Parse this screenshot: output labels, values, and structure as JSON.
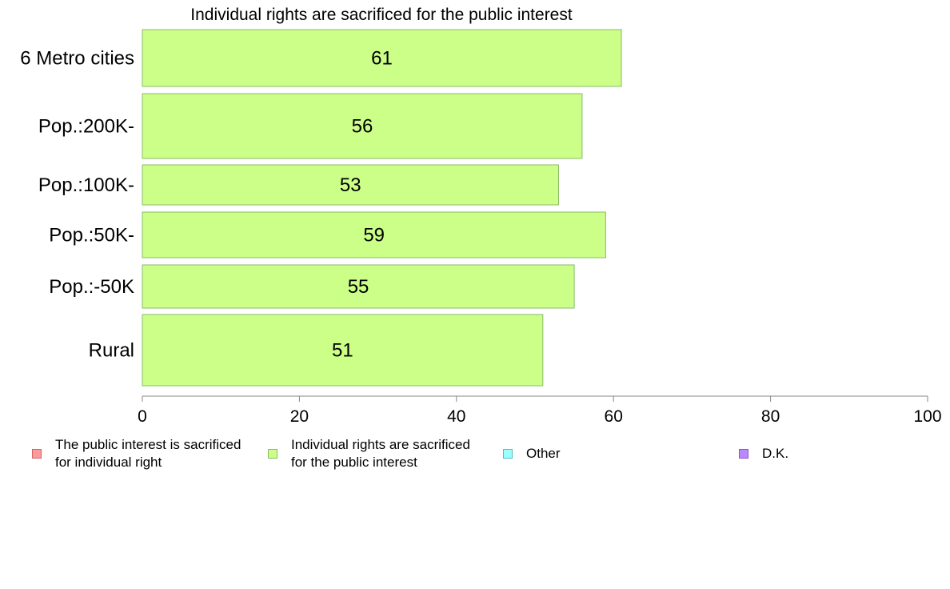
{
  "chart_data": {
    "type": "bar",
    "orientation": "horizontal",
    "title": "Individual rights are sacrificed for the public interest",
    "categories": [
      "6 Metro cities",
      "Pop.:200K-",
      "Pop.:100K-",
      "Pop.:50K-",
      "Pop.:-50K",
      "Rural"
    ],
    "values": [
      61,
      56,
      53,
      59,
      55,
      51
    ],
    "xlim": [
      0,
      100
    ],
    "xticks": [
      "0",
      "20",
      "40",
      "60",
      "80",
      "100"
    ],
    "bar_color": "#ccff88",
    "bar_border": "#88bb66",
    "grid": false,
    "legend_position": "bottom",
    "legend": [
      {
        "label": "The public interest is sacrificed\nfor individual right",
        "color": "#ff9999",
        "border": "#cc6666"
      },
      {
        "label": "Individual rights are sacrificed\nfor the public interest",
        "color": "#ccff88",
        "border": "#88bb66"
      },
      {
        "label": "Other",
        "color": "#99ffff",
        "border": "#55bbbb"
      },
      {
        "label": "D.K.",
        "color": "#bb88ff",
        "border": "#8855cc"
      }
    ]
  }
}
